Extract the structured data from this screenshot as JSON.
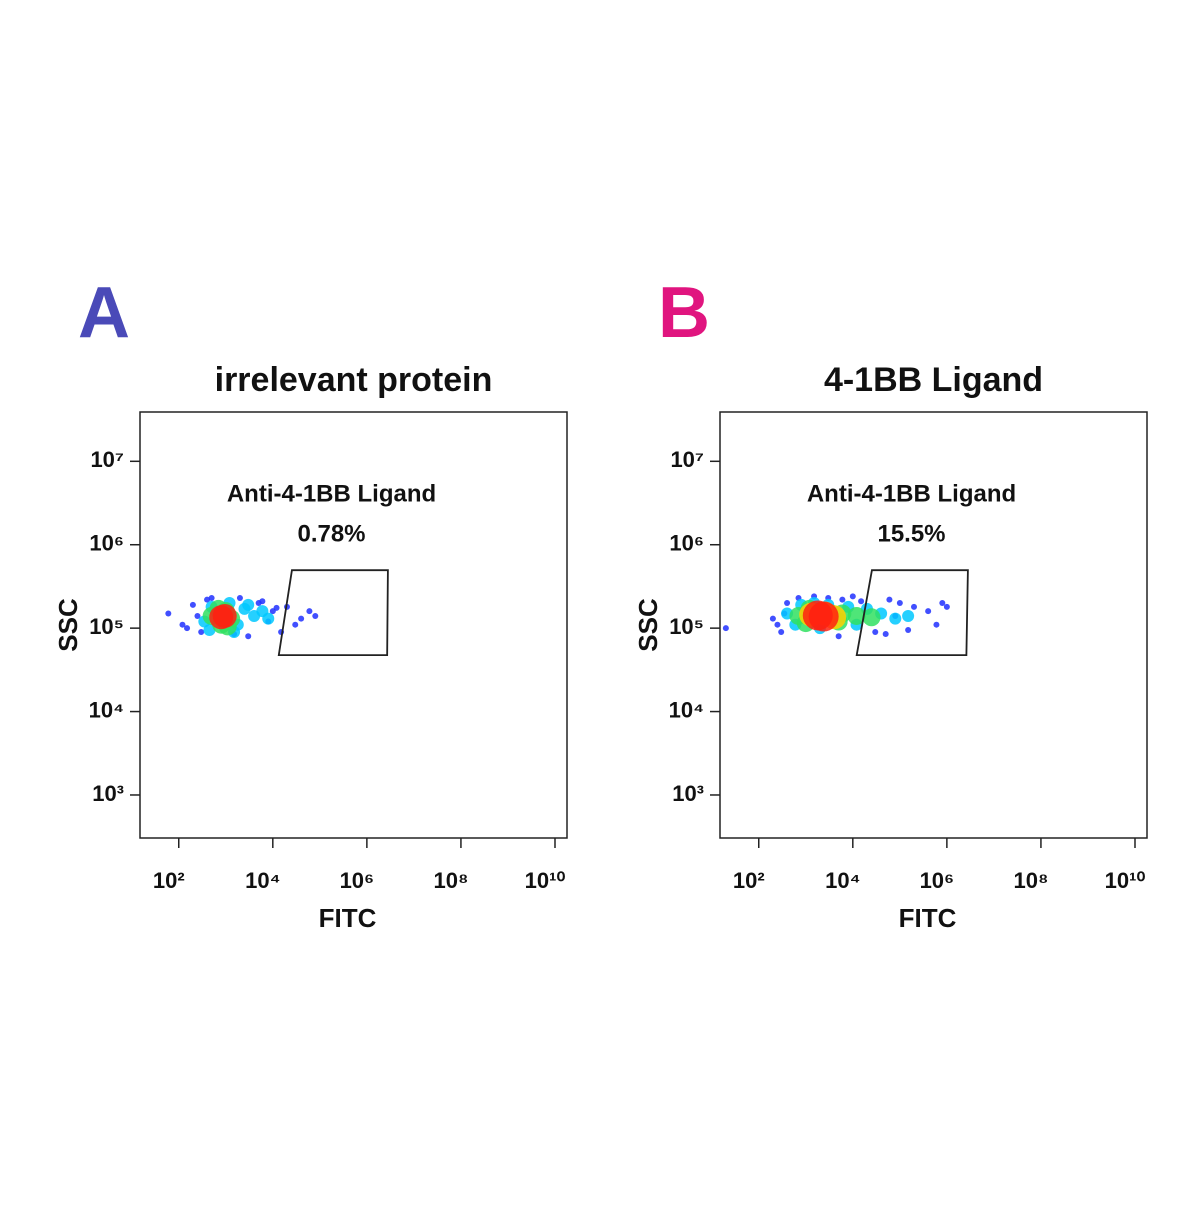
{
  "chart_data": [
    {
      "type": "scatter",
      "panel": "A",
      "panel_color": "#4a4ab8",
      "title": "irrelevant protein",
      "x_label": "FITC",
      "y_label": "SSC",
      "xscale": "log",
      "yscale": "log",
      "xlim": [
        15,
        18000000000
      ],
      "ylim": [
        305,
        39000000
      ],
      "xticks": [
        {
          "value": 100,
          "label": "10²"
        },
        {
          "value": 10000,
          "label": "10⁴"
        },
        {
          "value": 1000000,
          "label": "10⁶"
        },
        {
          "value": 100000000,
          "label": "10⁸"
        },
        {
          "value": 10000000000,
          "label": "10¹⁰"
        }
      ],
      "yticks": [
        {
          "value": 1000,
          "label": "10³"
        },
        {
          "value": 10000,
          "label": "10⁴"
        },
        {
          "value": 100000,
          "label": "10⁵"
        },
        {
          "value": 1000000,
          "label": "10⁶"
        },
        {
          "value": 10000000,
          "label": "10⁷"
        }
      ],
      "series": [
        {
          "color": "#2030ff",
          "x": [
            60,
            120,
            200,
            300,
            500,
            2000,
            5000,
            10000,
            20000,
            40000,
            80000,
            150,
            3000,
            15000,
            60000,
            400,
            8000,
            1500,
            30000,
            6000,
            12000,
            250
          ],
          "y": [
            150000,
            110000,
            190000,
            90000,
            230000,
            230000,
            200000,
            160000,
            180000,
            130000,
            140000,
            100000,
            80000,
            90000,
            160000,
            220000,
            120000,
            85000,
            110000,
            210000,
            175000,
            140000
          ]
        },
        {
          "color": "#00c8ff",
          "x": [
            350,
            500,
            1200,
            1800,
            2500,
            4000,
            6000,
            3000,
            8000,
            450,
            1500
          ],
          "y": [
            120000,
            180000,
            200000,
            110000,
            170000,
            140000,
            160000,
            190000,
            130000,
            95000,
            90000
          ]
        },
        {
          "color": "#30e060",
          "x": [
            500,
            700,
            1000,
            1300,
            800,
            1100
          ],
          "y": [
            140000,
            170000,
            160000,
            130000,
            110000,
            105000
          ]
        },
        {
          "color": "#ff2010",
          "x": [
            800,
            950
          ],
          "y": [
            135000,
            140000
          ]
        }
      ],
      "gate": {
        "name": "Anti-4-1BB Ligand",
        "value": 0.78,
        "value_label": "0.78%",
        "x": [
          25500,
          2800000,
          2700000,
          13400
        ],
        "y": [
          495000,
          495000,
          47500,
          47500
        ]
      }
    },
    {
      "type": "scatter",
      "panel": "B",
      "panel_color": "#e0157f",
      "title": "4-1BB Ligand",
      "x_label": "FITC",
      "y_label": "SSC",
      "xscale": "log",
      "yscale": "log",
      "xlim": [
        15,
        18000000000
      ],
      "ylim": [
        305,
        39000000
      ],
      "xticks": [
        {
          "value": 100,
          "label": "10²"
        },
        {
          "value": 10000,
          "label": "10⁴"
        },
        {
          "value": 1000000,
          "label": "10⁶"
        },
        {
          "value": 100000000,
          "label": "10⁸"
        },
        {
          "value": 10000000000,
          "label": "10¹⁰"
        }
      ],
      "yticks": [
        {
          "value": 1000,
          "label": "10³"
        },
        {
          "value": 10000,
          "label": "10⁴"
        },
        {
          "value": 100000,
          "label": "10⁵"
        },
        {
          "value": 1000000,
          "label": "10⁶"
        },
        {
          "value": 10000000,
          "label": "10⁷"
        }
      ],
      "series": [
        {
          "color": "#2030ff",
          "x": [
            20,
            200,
            300,
            400,
            700,
            1500,
            3000,
            6000,
            15000,
            30000,
            60000,
            100000,
            200000,
            400000,
            800000,
            250,
            5000,
            50000,
            150000,
            600000,
            10000,
            80000,
            1000000,
            350
          ],
          "y": [
            100000,
            130000,
            90000,
            200000,
            230000,
            240000,
            230000,
            220000,
            210000,
            90000,
            220000,
            200000,
            180000,
            160000,
            200000,
            110000,
            80000,
            85000,
            95000,
            110000,
            240000,
            140000,
            180000,
            150000
          ]
        },
        {
          "color": "#00c8ff",
          "x": [
            400,
            800,
            1500,
            3000,
            8000,
            20000,
            40000,
            80000,
            150000,
            600,
            2000,
            12000
          ],
          "y": [
            150000,
            190000,
            200000,
            190000,
            180000,
            170000,
            150000,
            130000,
            140000,
            110000,
            100000,
            110000
          ]
        },
        {
          "color": "#30e060",
          "x": [
            700,
            1200,
            2000,
            3500,
            6000,
            12000,
            25000,
            1000,
            5000
          ],
          "y": [
            140000,
            170000,
            160000,
            150000,
            150000,
            140000,
            135000,
            115000,
            120000
          ]
        },
        {
          "color": "#ffd000",
          "x": [
            1300,
            2500,
            4000
          ],
          "y": [
            145000,
            150000,
            135000
          ]
        },
        {
          "color": "#ff2010",
          "x": [
            1800,
            2400
          ],
          "y": [
            142000,
            138000
          ]
        }
      ],
      "gate": {
        "name": "Anti-4-1BB Ligand",
        "value": 15.5,
        "value_label": "15.5%",
        "x": [
          25500,
          2800000,
          2600000,
          12100
        ],
        "y": [
          495000,
          495000,
          47500,
          47500
        ]
      }
    }
  ]
}
